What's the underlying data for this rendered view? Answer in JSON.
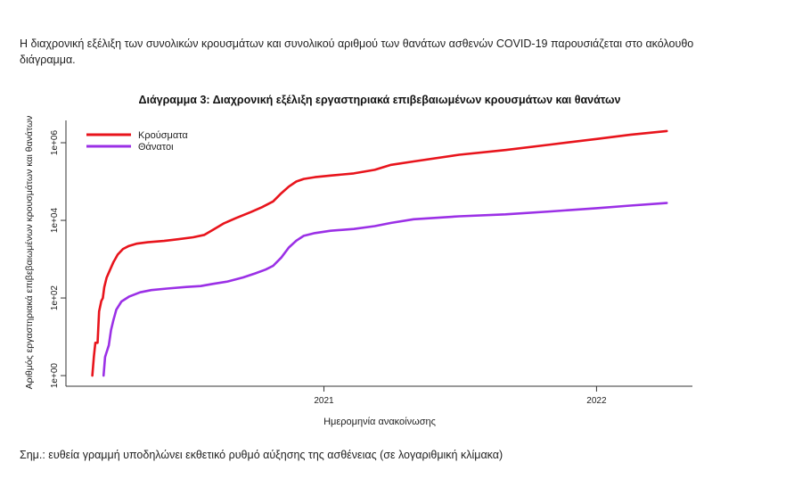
{
  "intro_text": "Η διαχρονική εξέλιξη των συνολικών κρουσμάτων και συνολικού αριθμού των θανάτων ασθενών COVID-19 παρουσιάζεται στο ακόλουθο διάγραμμα.",
  "footnote": "Σημ.: ευθεία γραμμή υποδηλώνει εκθετικό ρυθμό αύξησης της ασθένειας (σε λογαριθμική κλίμακα)",
  "chart_data": {
    "type": "line",
    "title": "Διάγραμμα 3: Διαχρονική εξέλιξη εργαστηριακά επιβεβαιωμένων κρουσμάτων και θανάτων",
    "xlabel": "Ημερομηνία ανακοίνωσης",
    "ylabel": "Αριθμός εργαστηριακά επιβεβαιωμένων κρουσμάτων και θανάτων",
    "y_scale": "log",
    "xlim": [
      "2020-02-20",
      "2022-04-10"
    ],
    "ylim": [
      1,
      2000000
    ],
    "x_ticks": [
      {
        "value": "2021-01-01",
        "label": "2021"
      },
      {
        "value": "2022-01-01",
        "label": "2022"
      }
    ],
    "y_ticks": [
      {
        "value": 1,
        "label": "1e+00"
      },
      {
        "value": 100,
        "label": "1e+02"
      },
      {
        "value": 10000,
        "label": "1e+04"
      },
      {
        "value": 1000000,
        "label": "1e+06"
      }
    ],
    "legend_position": "top-left",
    "series": [
      {
        "name": "Κρούσματα",
        "color": "#e8141c",
        "points": [
          [
            "2020-02-26",
            1
          ],
          [
            "2020-02-28",
            3
          ],
          [
            "2020-03-01",
            7
          ],
          [
            "2020-03-04",
            7
          ],
          [
            "2020-03-06",
            45
          ],
          [
            "2020-03-09",
            84
          ],
          [
            "2020-03-11",
            99
          ],
          [
            "2020-03-13",
            190
          ],
          [
            "2020-03-16",
            331
          ],
          [
            "2020-03-20",
            495
          ],
          [
            "2020-03-25",
            821
          ],
          [
            "2020-03-31",
            1314
          ],
          [
            "2020-04-07",
            1832
          ],
          [
            "2020-04-15",
            2192
          ],
          [
            "2020-04-25",
            2506
          ],
          [
            "2020-05-10",
            2726
          ],
          [
            "2020-06-01",
            2952
          ],
          [
            "2020-06-20",
            3256
          ],
          [
            "2020-07-10",
            3672
          ],
          [
            "2020-07-25",
            4227
          ],
          [
            "2020-08-05",
            5623
          ],
          [
            "2020-08-20",
            8381
          ],
          [
            "2020-09-05",
            11386
          ],
          [
            "2020-09-25",
            16286
          ],
          [
            "2020-10-10",
            21772
          ],
          [
            "2020-10-25",
            30782
          ],
          [
            "2020-11-05",
            50000
          ],
          [
            "2020-11-15",
            74205
          ],
          [
            "2020-11-25",
            100000
          ],
          [
            "2020-12-05",
            117000
          ],
          [
            "2020-12-20",
            130000
          ],
          [
            "2021-01-10",
            143000
          ],
          [
            "2021-02-10",
            162000
          ],
          [
            "2021-03-10",
            200000
          ],
          [
            "2021-04-01",
            270000
          ],
          [
            "2021-05-01",
            330000
          ],
          [
            "2021-07-01",
            490000
          ],
          [
            "2021-09-01",
            650000
          ],
          [
            "2021-11-01",
            900000
          ],
          [
            "2022-01-01",
            1250000
          ],
          [
            "2022-02-15",
            1600000
          ],
          [
            "2022-04-05",
            2000000
          ]
        ]
      },
      {
        "name": "Θάνατοι",
        "color": "#9b30e6",
        "points": [
          [
            "2020-03-12",
            1
          ],
          [
            "2020-03-14",
            3
          ],
          [
            "2020-03-16",
            4
          ],
          [
            "2020-03-19",
            6
          ],
          [
            "2020-03-22",
            15
          ],
          [
            "2020-03-25",
            26
          ],
          [
            "2020-03-29",
            50
          ],
          [
            "2020-04-05",
            81
          ],
          [
            "2020-04-15",
            108
          ],
          [
            "2020-04-30",
            140
          ],
          [
            "2020-05-15",
            160
          ],
          [
            "2020-06-05",
            175
          ],
          [
            "2020-07-01",
            192
          ],
          [
            "2020-07-20",
            203
          ],
          [
            "2020-08-05",
            230
          ],
          [
            "2020-08-25",
            266
          ],
          [
            "2020-09-15",
            338
          ],
          [
            "2020-10-01",
            430
          ],
          [
            "2020-10-15",
            540
          ],
          [
            "2020-10-25",
            673
          ],
          [
            "2020-11-05",
            1100
          ],
          [
            "2020-11-15",
            2000
          ],
          [
            "2020-11-25",
            3000
          ],
          [
            "2020-12-05",
            4000
          ],
          [
            "2020-12-20",
            4700
          ],
          [
            "2021-01-10",
            5400
          ],
          [
            "2021-02-10",
            6000
          ],
          [
            "2021-03-10",
            7100
          ],
          [
            "2021-04-01",
            8600
          ],
          [
            "2021-05-01",
            10700
          ],
          [
            "2021-07-01",
            12700
          ],
          [
            "2021-09-01",
            14300
          ],
          [
            "2021-11-01",
            17000
          ],
          [
            "2022-01-01",
            20600
          ],
          [
            "2022-02-15",
            24000
          ],
          [
            "2022-04-05",
            28000
          ]
        ]
      }
    ]
  }
}
